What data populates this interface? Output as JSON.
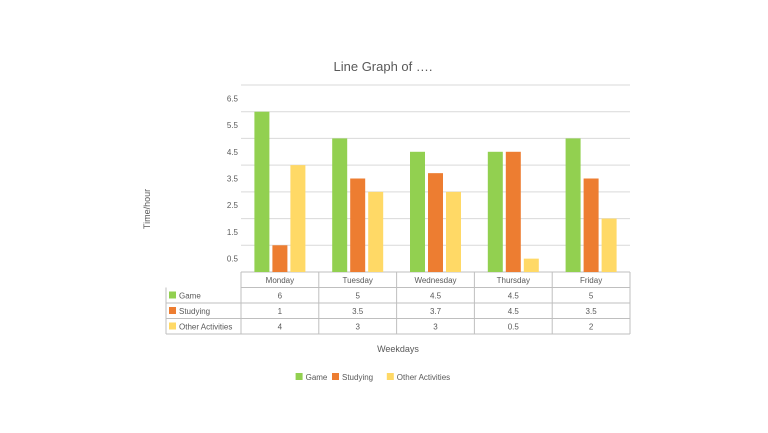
{
  "chart_data": {
    "type": "bar",
    "title": "Line Graph of ….",
    "xlabel": "Weekdays",
    "ylabel": "Time/hour",
    "categories": [
      "Monday",
      "Tuesday",
      "Wednesday",
      "Thursday",
      "Friday"
    ],
    "y_ticks": [
      "6.5",
      "5.5",
      "4.5",
      "3.5",
      "2.5",
      "1.5",
      "0.5"
    ],
    "y_tick_values": [
      6.5,
      5.5,
      4.5,
      3.5,
      2.5,
      1.5,
      0.5
    ],
    "ylim": [
      0,
      7
    ],
    "grid": true,
    "legend_position": "bottom",
    "data_table": true,
    "series": [
      {
        "name": "Game",
        "color": "#92D050",
        "values": [
          6,
          5,
          4.5,
          4.5,
          5
        ],
        "labels": [
          "6",
          "5",
          "4.5",
          "4.5",
          "5"
        ]
      },
      {
        "name": "Studying",
        "color": "#ED7D31",
        "values": [
          1,
          3.5,
          3.7,
          4.5,
          3.5
        ],
        "labels": [
          "1",
          "3.5",
          "3.7",
          "4.5",
          "3.5"
        ]
      },
      {
        "name": "Other Activities",
        "color": "#FFD966",
        "values": [
          4,
          3,
          3,
          0.5,
          2
        ],
        "labels": [
          "4",
          "3",
          "3",
          "0.5",
          "2"
        ]
      }
    ]
  }
}
